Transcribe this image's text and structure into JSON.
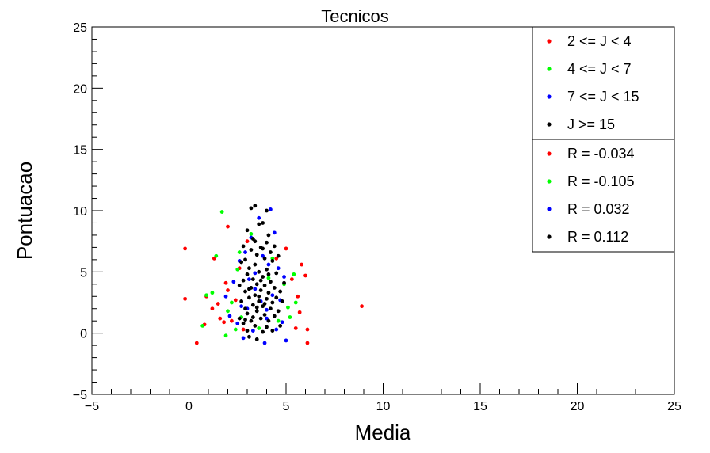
{
  "chart_data": {
    "type": "scatter",
    "title": "Tecnicos",
    "xlabel": "Media",
    "ylabel": "Pontuacao",
    "xlim": [
      -5,
      25
    ],
    "ylim": [
      -5,
      25
    ],
    "x_ticks": [
      -5,
      0,
      5,
      10,
      15,
      20,
      25
    ],
    "y_ticks": [
      -5,
      0,
      5,
      10,
      15,
      20,
      25
    ],
    "grid": false,
    "legend_position": "top-right",
    "legend_groups": [
      [
        {
          "label": "2 <= J < 4",
          "color": "#ff0000"
        },
        {
          "label": "4 <= J < 7",
          "color": "#00ff00"
        },
        {
          "label": "7 <= J < 15",
          "color": "#0000ff"
        },
        {
          "label": "J >= 15",
          "color": "#000000"
        }
      ],
      [
        {
          "label": "R = -0.034",
          "color": "#ff0000"
        },
        {
          "label": "R = -0.105",
          "color": "#00ff00"
        },
        {
          "label": "R = 0.032",
          "color": "#0000ff"
        },
        {
          "label": "R = 0.112",
          "color": "#000000"
        }
      ]
    ],
    "series": [
      {
        "color": "#ff0000",
        "points": [
          [
            -0.2,
            6.9
          ],
          [
            -0.2,
            2.8
          ],
          [
            0.4,
            -0.8
          ],
          [
            0.8,
            0.7
          ],
          [
            0.9,
            3.0
          ],
          [
            1.2,
            2.0
          ],
          [
            1.3,
            6.1
          ],
          [
            1.5,
            2.4
          ],
          [
            1.6,
            1.2
          ],
          [
            1.8,
            0.9
          ],
          [
            1.9,
            4.1
          ],
          [
            2.0,
            3.5
          ],
          [
            2.0,
            8.7
          ],
          [
            2.2,
            1.0
          ],
          [
            2.4,
            2.7
          ],
          [
            2.6,
            5.3
          ],
          [
            2.8,
            0.3
          ],
          [
            5.0,
            6.9
          ],
          [
            5.3,
            4.4
          ],
          [
            5.5,
            0.4
          ],
          [
            5.6,
            3.0
          ],
          [
            5.7,
            1.7
          ],
          [
            5.8,
            5.6
          ],
          [
            6.0,
            4.7
          ],
          [
            6.1,
            0.3
          ],
          [
            6.1,
            -0.8
          ],
          [
            8.9,
            2.2
          ],
          [
            3.0,
            7.5
          ],
          [
            4.5,
            6.1
          ]
        ]
      },
      {
        "color": "#00ff00",
        "points": [
          [
            0.7,
            0.6
          ],
          [
            0.9,
            3.1
          ],
          [
            1.2,
            3.3
          ],
          [
            1.4,
            6.3
          ],
          [
            1.7,
            9.9
          ],
          [
            1.9,
            -0.2
          ],
          [
            2.0,
            1.8
          ],
          [
            2.2,
            2.5
          ],
          [
            2.4,
            0.3
          ],
          [
            2.5,
            5.2
          ],
          [
            2.6,
            6.6
          ],
          [
            2.7,
            1.3
          ],
          [
            3.2,
            8.1
          ],
          [
            4.3,
            6.1
          ],
          [
            4.6,
            1.0
          ],
          [
            4.9,
            4.0
          ],
          [
            5.1,
            2.1
          ],
          [
            5.2,
            1.3
          ],
          [
            5.4,
            4.8
          ],
          [
            5.5,
            2.5
          ],
          [
            3.6,
            0.4
          ],
          [
            4.1,
            4.5
          ]
        ]
      },
      {
        "color": "#0000ff",
        "points": [
          [
            1.9,
            3.0
          ],
          [
            2.1,
            1.4
          ],
          [
            2.3,
            4.2
          ],
          [
            2.5,
            0.8
          ],
          [
            2.6,
            5.9
          ],
          [
            2.8,
            -0.4
          ],
          [
            2.9,
            6.6
          ],
          [
            3.0,
            2.0
          ],
          [
            3.2,
            7.8
          ],
          [
            3.3,
            0.2
          ],
          [
            3.4,
            4.9
          ],
          [
            3.6,
            9.4
          ],
          [
            3.7,
            2.6
          ],
          [
            3.8,
            6.3
          ],
          [
            3.9,
            -0.8
          ],
          [
            4.0,
            1.9
          ],
          [
            4.1,
            5.6
          ],
          [
            4.2,
            10.1
          ],
          [
            4.3,
            3.1
          ],
          [
            4.4,
            8.2
          ],
          [
            4.5,
            0.3
          ],
          [
            4.6,
            5.3
          ],
          [
            4.7,
            2.7
          ],
          [
            4.8,
            0.9
          ],
          [
            4.9,
            4.6
          ],
          [
            5.0,
            -0.6
          ],
          [
            3.4,
            3.6
          ],
          [
            3.1,
            4.4
          ],
          [
            4.0,
            1.2
          ],
          [
            2.7,
            2.2
          ]
        ]
      },
      {
        "color": "#000000",
        "points": [
          [
            2.6,
            1.2
          ],
          [
            2.6,
            3.9
          ],
          [
            2.7,
            2.6
          ],
          [
            2.7,
            5.8
          ],
          [
            2.8,
            0.8
          ],
          [
            2.8,
            4.3
          ],
          [
            2.8,
            7.1
          ],
          [
            2.9,
            2.0
          ],
          [
            2.9,
            3.4
          ],
          [
            2.9,
            6.0
          ],
          [
            3.0,
            0.2
          ],
          [
            3.0,
            1.6
          ],
          [
            3.0,
            4.8
          ],
          [
            3.0,
            8.4
          ],
          [
            3.1,
            2.9
          ],
          [
            3.1,
            5.3
          ],
          [
            3.1,
            -0.3
          ],
          [
            3.2,
            1.0
          ],
          [
            3.2,
            3.7
          ],
          [
            3.2,
            6.8
          ],
          [
            3.2,
            10.2
          ],
          [
            3.3,
            2.3
          ],
          [
            3.3,
            4.4
          ],
          [
            3.3,
            7.7
          ],
          [
            3.4,
            0.6
          ],
          [
            3.4,
            3.1
          ],
          [
            3.4,
            5.6
          ],
          [
            3.4,
            10.4
          ],
          [
            3.5,
            1.8
          ],
          [
            3.5,
            4.0
          ],
          [
            3.5,
            6.4
          ],
          [
            3.5,
            -0.5
          ],
          [
            3.6,
            2.6
          ],
          [
            3.6,
            5.0
          ],
          [
            3.6,
            8.9
          ],
          [
            3.7,
            1.2
          ],
          [
            3.7,
            3.5
          ],
          [
            3.7,
            7.0
          ],
          [
            3.8,
            0.1
          ],
          [
            3.8,
            2.2
          ],
          [
            3.8,
            4.6
          ],
          [
            3.8,
            9.0
          ],
          [
            3.9,
            1.5
          ],
          [
            3.9,
            3.9
          ],
          [
            3.9,
            6.1
          ],
          [
            4.0,
            0.5
          ],
          [
            4.0,
            2.8
          ],
          [
            4.0,
            5.2
          ],
          [
            4.0,
            7.4
          ],
          [
            4.1,
            1.0
          ],
          [
            4.1,
            3.3
          ],
          [
            4.1,
            8.0
          ],
          [
            4.2,
            2.0
          ],
          [
            4.2,
            4.2
          ],
          [
            4.2,
            6.6
          ],
          [
            4.3,
            0.2
          ],
          [
            4.3,
            2.5
          ],
          [
            4.3,
            5.9
          ],
          [
            4.4,
            1.4
          ],
          [
            4.4,
            3.7
          ],
          [
            4.4,
            7.1
          ],
          [
            4.5,
            2.9
          ],
          [
            4.5,
            4.9
          ],
          [
            4.6,
            1.8
          ],
          [
            4.6,
            6.3
          ],
          [
            4.7,
            3.4
          ],
          [
            4.7,
            0.6
          ],
          [
            4.8,
            2.6
          ],
          [
            4.9,
            4.1
          ],
          [
            3.3,
            1.3
          ],
          [
            3.6,
            3.0
          ],
          [
            3.9,
            2.4
          ],
          [
            3.1,
            3.6
          ],
          [
            3.5,
            2.1
          ],
          [
            3.7,
            4.3
          ],
          [
            2.9,
            1.1
          ],
          [
            4.1,
            4.8
          ],
          [
            3.8,
            6.9
          ],
          [
            3.4,
            7.5
          ],
          [
            4.0,
            10.0
          ]
        ]
      }
    ]
  }
}
